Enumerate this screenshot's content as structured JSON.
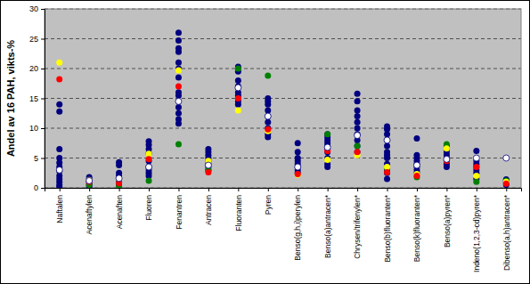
{
  "chart_data": {
    "type": "scatter",
    "y_label": "Andel  av 16 PAH, vikts-%",
    "categories": [
      "Naftalen",
      "Acenaftylen",
      "Acenaften",
      "Fluoren",
      "Fenantren",
      "Antracen",
      "Fluoranten",
      "Pyren",
      "Benso(g,h,i)perylen",
      "Benso(a)antracen*",
      "Chrysen/trifenylen*",
      "Benso(b)fluoranten*",
      "Benso(k)fluoranten*",
      "Benso(a)pyren*",
      "Indeno(1,2,3-cd)pyren*",
      "Dibenso(a,h)antracen*"
    ],
    "ylim": [
      0,
      30
    ],
    "yticks": [
      0,
      5,
      10,
      15,
      20,
      25,
      30
    ],
    "grid": true,
    "marker": "circle",
    "series": [
      {
        "color": "#000080",
        "x": [
          "Naftalen",
          "Naftalen",
          "Naftalen",
          "Naftalen",
          "Naftalen",
          "Naftalen",
          "Naftalen",
          "Naftalen",
          "Naftalen",
          "Naftalen",
          "Naftalen",
          "Naftalen",
          "Acenaftylen",
          "Acenaftylen",
          "Acenaftylen",
          "Acenaftylen",
          "Acenaftylen",
          "Acenaftylen",
          "Acenaften",
          "Acenaften",
          "Acenaften",
          "Acenaften",
          "Acenaften",
          "Acenaften",
          "Acenaften",
          "Fluoren",
          "Fluoren",
          "Fluoren",
          "Fluoren",
          "Fluoren",
          "Fluoren",
          "Fluoren",
          "Fluoren",
          "Fluoren",
          "Fenantren",
          "Fenantren",
          "Fenantren",
          "Fenantren",
          "Fenantren",
          "Fenantren",
          "Fenantren",
          "Fenantren",
          "Fenantren",
          "Fenantren",
          "Fenantren",
          "Fenantren",
          "Fenantren",
          "Antracen",
          "Antracen",
          "Antracen",
          "Antracen",
          "Antracen",
          "Antracen",
          "Antracen",
          "Antracen",
          "Fluoranten",
          "Fluoranten",
          "Fluoranten",
          "Fluoranten",
          "Fluoranten",
          "Fluoranten",
          "Fluoranten",
          "Fluoranten",
          "Pyren",
          "Pyren",
          "Pyren",
          "Pyren",
          "Pyren",
          "Pyren",
          "Pyren",
          "Pyren",
          "Pyren",
          "Benso(g,h,i)perylen",
          "Benso(g,h,i)perylen",
          "Benso(g,h,i)perylen",
          "Benso(g,h,i)perylen",
          "Benso(g,h,i)perylen",
          "Benso(g,h,i)perylen",
          "Benso(g,h,i)perylen",
          "Benso(g,h,i)perylen",
          "Benso(a)antracen*",
          "Benso(a)antracen*",
          "Benso(a)antracen*",
          "Benso(a)antracen*",
          "Benso(a)antracen*",
          "Benso(a)antracen*",
          "Benso(a)antracen*",
          "Benso(a)antracen*",
          "Benso(a)antracen*",
          "Benso(a)antracen*",
          "Chrysen/trifenylen*",
          "Chrysen/trifenylen*",
          "Chrysen/trifenylen*",
          "Chrysen/trifenylen*",
          "Chrysen/trifenylen*",
          "Chrysen/trifenylen*",
          "Chrysen/trifenylen*",
          "Chrysen/trifenylen*",
          "Chrysen/trifenylen*",
          "Chrysen/trifenylen*",
          "Benso(b)fluoranten*",
          "Benso(b)fluoranten*",
          "Benso(b)fluoranten*",
          "Benso(b)fluoranten*",
          "Benso(b)fluoranten*",
          "Benso(b)fluoranten*",
          "Benso(b)fluoranten*",
          "Benso(b)fluoranten*",
          "Benso(b)fluoranten*",
          "Benso(b)fluoranten*",
          "Benso(b)fluoranten*",
          "Benso(b)fluoranten*",
          "Benso(k)fluoranten*",
          "Benso(k)fluoranten*",
          "Benso(k)fluoranten*",
          "Benso(k)fluoranten*",
          "Benso(k)fluoranten*",
          "Benso(k)fluoranten*",
          "Benso(k)fluoranten*",
          "Benso(k)fluoranten*",
          "Benso(a)pyren*",
          "Benso(a)pyren*",
          "Benso(a)pyren*",
          "Benso(a)pyren*",
          "Benso(a)pyren*",
          "Benso(a)pyren*",
          "Benso(a)pyren*",
          "Benso(a)pyren*",
          "Indeno(1,2,3-cd)pyren*",
          "Indeno(1,2,3-cd)pyren*",
          "Indeno(1,2,3-cd)pyren*",
          "Indeno(1,2,3-cd)pyren*",
          "Indeno(1,2,3-cd)pyren*",
          "Indeno(1,2,3-cd)pyren*",
          "Indeno(1,2,3-cd)pyren*",
          "Dibenso(a,h)antracen*",
          "Dibenso(a,h)antracen*",
          "Dibenso(a,h)antracen*",
          "Dibenso(a,h)antracen*",
          "Dibenso(a,h)antracen*"
        ],
        "values": [
          14,
          12.8,
          6.5,
          5,
          4.2,
          3.5,
          2.8,
          2,
          1.5,
          1,
          0.5,
          0.2,
          1.8,
          1.5,
          1.2,
          0.8,
          0.5,
          0.2,
          4.3,
          3.8,
          2.5,
          2,
          1.5,
          1,
          0.5,
          7.8,
          7.2,
          6.5,
          5.8,
          4.5,
          3.5,
          3,
          2.5,
          2,
          26,
          24.7,
          23.4,
          22.8,
          21,
          20,
          18.5,
          16,
          15.5,
          13.5,
          12.5,
          11.5,
          10.8,
          6.5,
          6,
          5.5,
          5,
          4.5,
          4,
          3.5,
          3,
          20.3,
          19.5,
          18,
          17,
          16,
          15.5,
          14.5,
          14,
          15,
          14.5,
          14,
          13,
          12,
          11,
          10,
          9,
          8.5,
          7.5,
          6,
          5,
          4.5,
          4,
          3.5,
          3,
          2.5,
          9,
          8.5,
          8,
          7.5,
          7,
          6.5,
          6,
          5,
          4,
          3.5,
          15.8,
          14.5,
          13,
          12,
          11,
          10,
          9,
          8,
          7,
          6,
          10.3,
          9.8,
          9,
          8,
          7,
          6,
          5.5,
          5,
          4,
          3,
          2.5,
          1.5,
          8.3,
          5.5,
          5,
          4.5,
          4,
          3.5,
          3,
          2.5,
          7,
          6.5,
          6,
          5.5,
          5,
          4.5,
          4,
          3.5,
          6.2,
          4.5,
          4,
          3.5,
          3,
          2.5,
          1.5,
          1.4,
          1.2,
          1,
          0.8,
          0.5
        ]
      },
      {
        "color": "#008000",
        "values": [
          null,
          0.5,
          0.3,
          1.2,
          7.3,
          3.0,
          20,
          18.8,
          null,
          9,
          7,
          3.3,
          1.8,
          7.3,
          1,
          1.2
        ]
      },
      {
        "color": "#ffff00",
        "values": [
          21,
          1.3,
          1.5,
          5.7,
          19.7,
          4.5,
          13,
          9.5,
          2.2,
          4.7,
          5.5,
          3.5,
          2.3,
          6.6,
          2,
          1.0
        ]
      },
      {
        "color": "#ff0000",
        "values": [
          18.2,
          1.0,
          0.8,
          4.8,
          17,
          2.6,
          15,
          9.8,
          2.3,
          6.2,
          6,
          2.6,
          2,
          4.5,
          3.5,
          0.7
        ]
      },
      {
        "color": "#ffffff",
        "values": [
          3,
          1.2,
          1.6,
          3.5,
          14.5,
          3.8,
          16.8,
          12,
          3.5,
          6.8,
          8.8,
          8,
          3.8,
          4.8,
          5,
          5
        ]
      }
    ]
  }
}
